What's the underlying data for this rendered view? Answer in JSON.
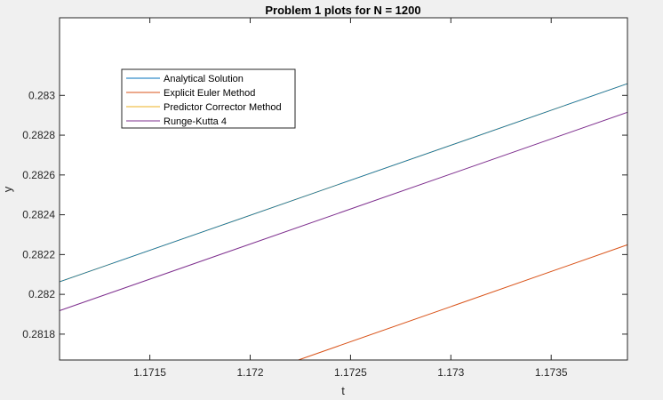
{
  "chart_data": {
    "type": "line",
    "title": "Problem 1 plots for N = 1200",
    "xlabel": "t",
    "ylabel": "y",
    "xlim": [
      1.17105,
      1.17388
    ],
    "ylim": [
      0.28167,
      0.28339
    ],
    "xticks": [
      1.1715,
      1.172,
      1.1725,
      1.173,
      1.1735
    ],
    "xtick_labels": [
      "1.1715",
      "1.172",
      "1.1725",
      "1.173",
      "1.1735"
    ],
    "yticks": [
      0.2818,
      0.282,
      0.2822,
      0.2824,
      0.2826,
      0.2828,
      0.283
    ],
    "ytick_labels": [
      "0.2818",
      "0.282",
      "0.2822",
      "0.2824",
      "0.2826",
      "0.2828",
      "0.283"
    ],
    "grid": false,
    "legend_position": "top-left",
    "series": [
      {
        "name": "Analytical Solution",
        "color": "#0072bd",
        "x": [
          1.17105,
          1.17388
        ],
        "y": [
          0.282063,
          0.283059
        ]
      },
      {
        "name": "Explicit Euler Method",
        "color": "#d95319",
        "x": [
          1.17224,
          1.17388
        ],
        "y": [
          0.28167,
          0.282249
        ]
      },
      {
        "name": "Predictor Corrector Method",
        "color": "#edb120",
        "x": [
          1.17105,
          1.17388
        ],
        "y": [
          0.282063,
          0.283059
        ]
      },
      {
        "name": "Runge-Kutta 4",
        "color": "#7e2f8e",
        "x": [
          1.17105,
          1.17388
        ],
        "y": [
          0.281918,
          0.282915
        ]
      }
    ]
  }
}
